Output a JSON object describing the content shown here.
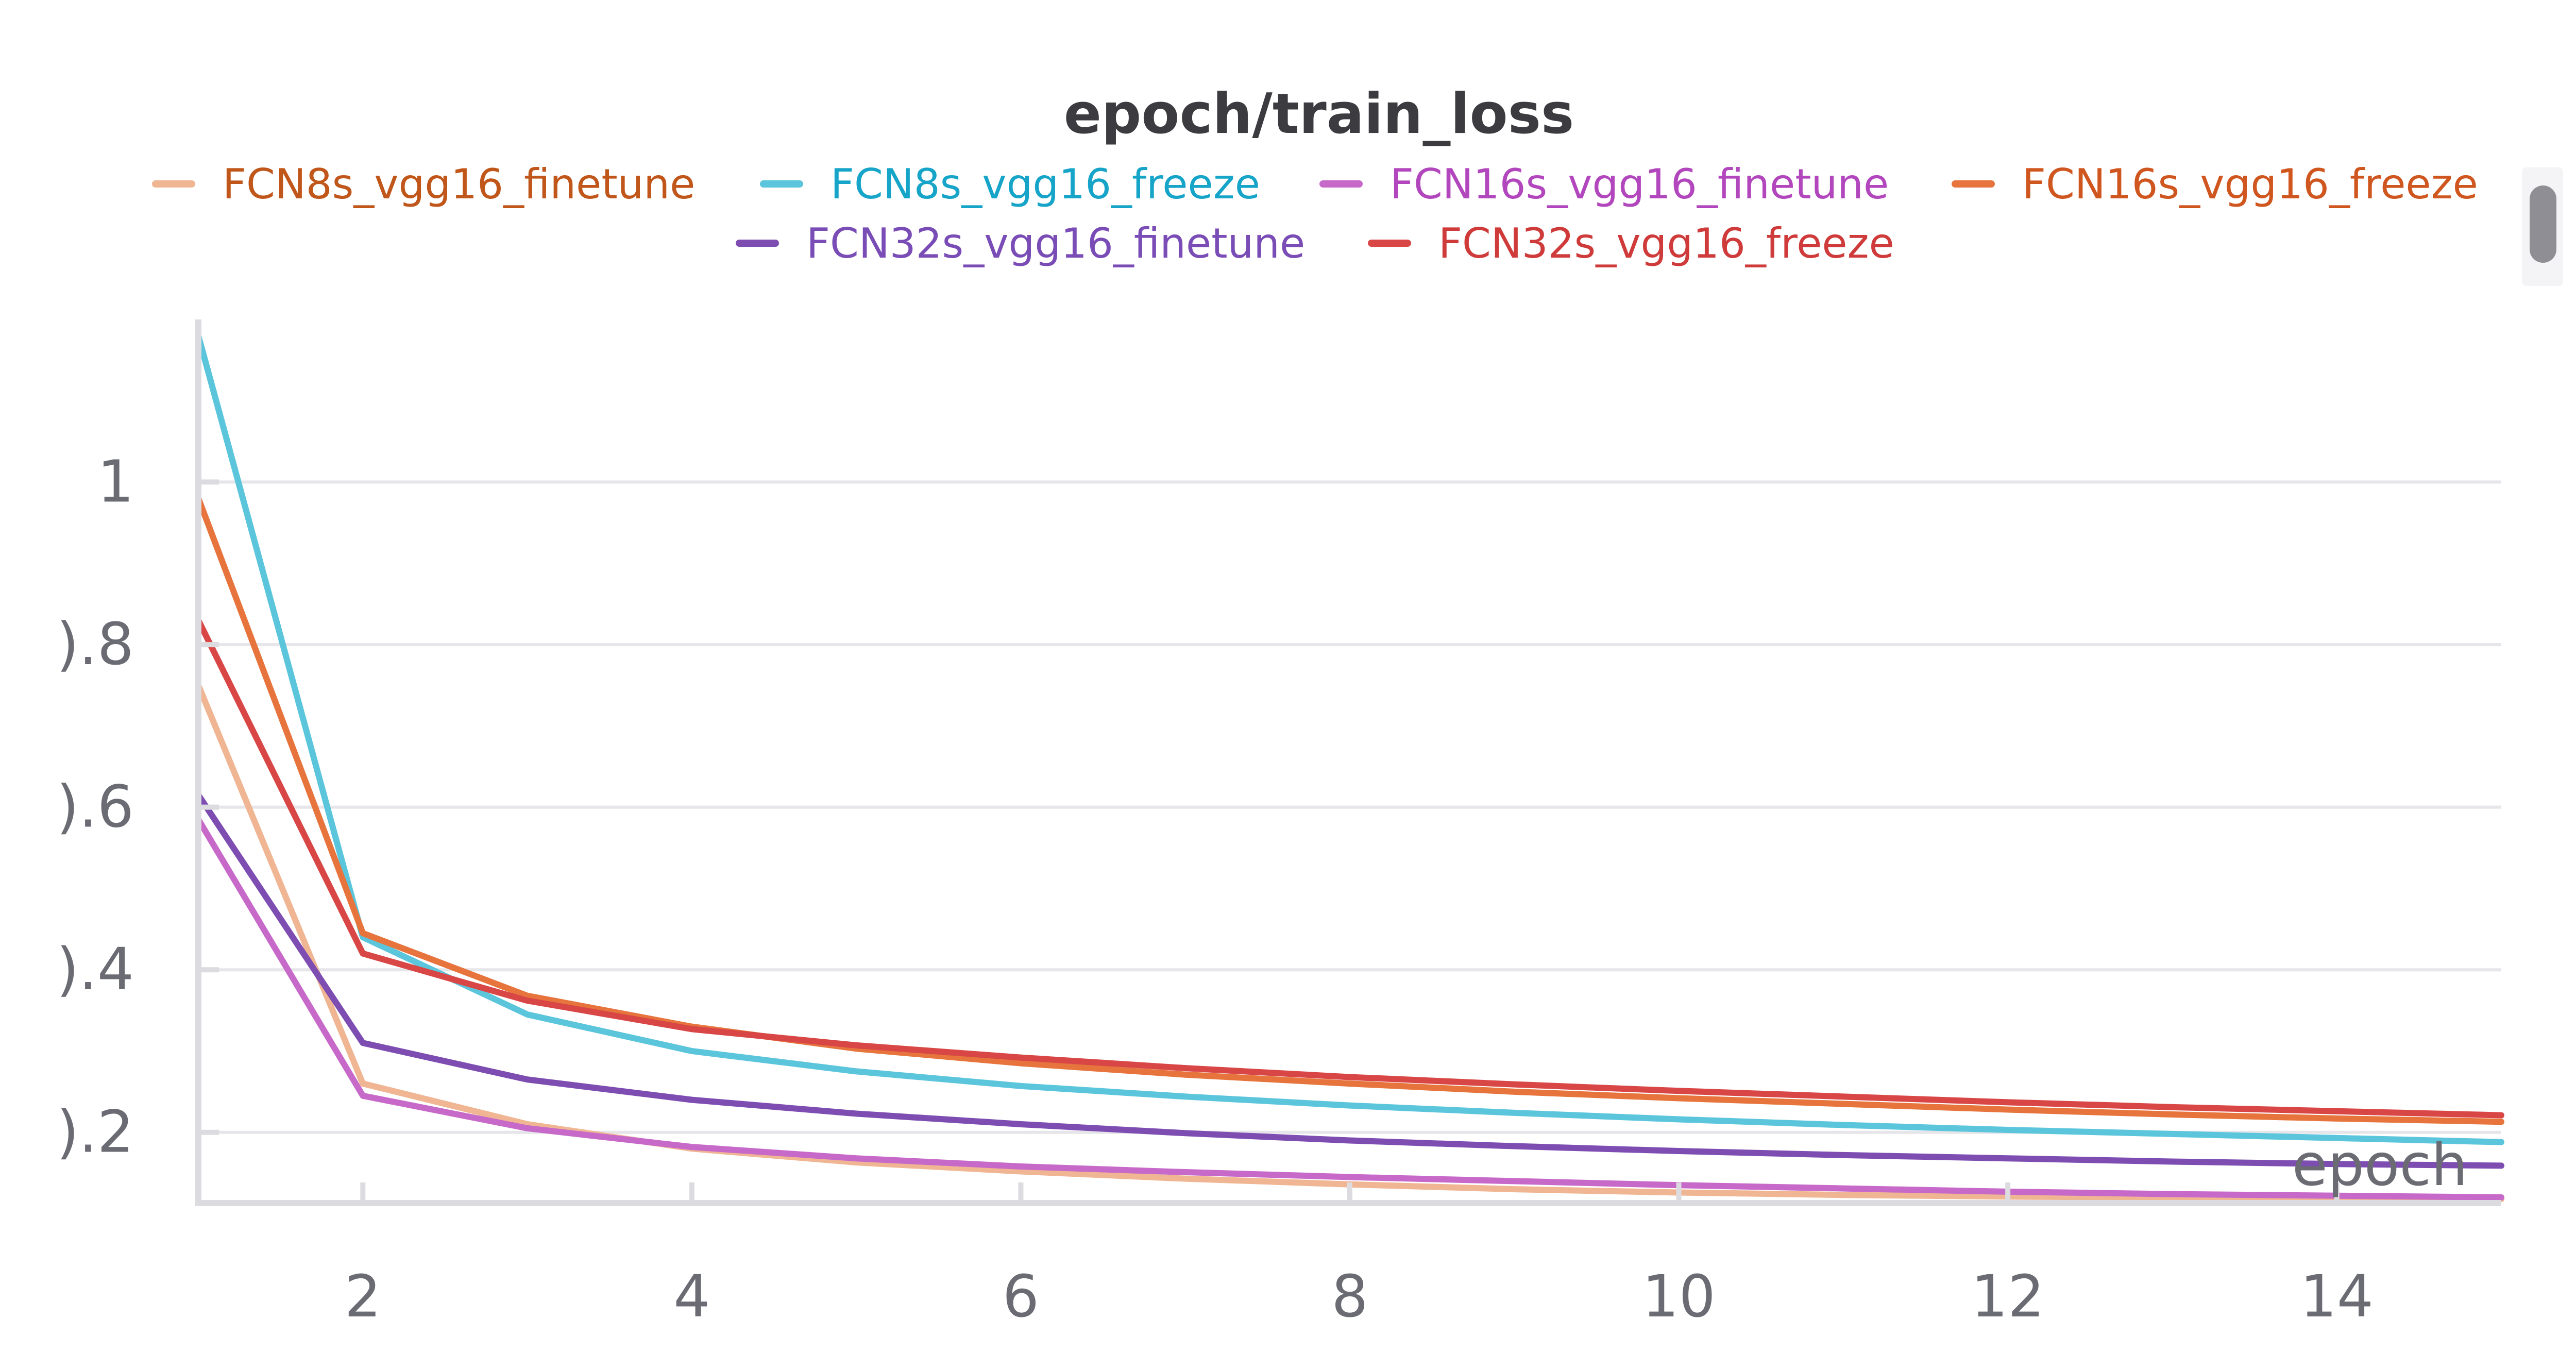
{
  "chart_data": {
    "type": "line",
    "title": "epoch/train_loss",
    "xlabel": "epoch",
    "ylabel": "",
    "xlim": [
      1,
      15
    ],
    "ylim": [
      0.113,
      1.2
    ],
    "x_ticks": [
      2,
      4,
      6,
      8,
      10,
      12,
      14
    ],
    "y_ticks": [
      0.2,
      0.4,
      0.6,
      0.8,
      1
    ],
    "y_tick_labels": [
      ").2",
      ").4",
      ").6",
      ").8",
      "1"
    ],
    "grid": true,
    "legend_position": "top-center",
    "x": [
      1,
      2,
      3,
      4,
      5,
      6,
      7,
      8,
      9,
      10,
      11,
      12,
      13,
      14,
      15
    ],
    "series": [
      {
        "name": "FCN8s_vgg16_finetune",
        "color": "#f0b592",
        "label_color": "#c0561a",
        "values": [
          0.75,
          0.26,
          0.21,
          0.18,
          0.163,
          0.152,
          0.143,
          0.136,
          0.13,
          0.126,
          0.123,
          0.121,
          0.12,
          0.119,
          0.118
        ]
      },
      {
        "name": "FCN8s_vgg16_freeze",
        "color": "#5bc5dc",
        "label_color": "#16a4c8",
        "values": [
          1.18,
          0.44,
          0.345,
          0.3,
          0.275,
          0.257,
          0.244,
          0.233,
          0.224,
          0.216,
          0.209,
          0.203,
          0.198,
          0.193,
          0.188
        ]
      },
      {
        "name": "FCN16s_vgg16_finetune",
        "color": "#c769c9",
        "label_color": "#b247bd",
        "values": [
          0.585,
          0.245,
          0.205,
          0.182,
          0.168,
          0.158,
          0.151,
          0.145,
          0.14,
          0.135,
          0.131,
          0.127,
          0.124,
          0.122,
          0.12
        ]
      },
      {
        "name": "FCN16s_vgg16_freeze",
        "color": "#e6743c",
        "label_color": "#d0561f",
        "values": [
          0.98,
          0.445,
          0.368,
          0.33,
          0.303,
          0.285,
          0.271,
          0.26,
          0.25,
          0.242,
          0.235,
          0.228,
          0.222,
          0.217,
          0.213
        ]
      },
      {
        "name": "FCN32s_vgg16_finetune",
        "color": "#7d4db2",
        "label_color": "#7a4cb6",
        "values": [
          0.615,
          0.31,
          0.265,
          0.24,
          0.223,
          0.21,
          0.199,
          0.19,
          0.183,
          0.177,
          0.172,
          0.168,
          0.164,
          0.161,
          0.159
        ]
      },
      {
        "name": "FCN32s_vgg16_freeze",
        "color": "#d94646",
        "label_color": "#cf3b3b",
        "values": [
          0.83,
          0.42,
          0.362,
          0.327,
          0.307,
          0.292,
          0.279,
          0.268,
          0.259,
          0.251,
          0.244,
          0.237,
          0.231,
          0.226,
          0.221
        ]
      }
    ]
  }
}
